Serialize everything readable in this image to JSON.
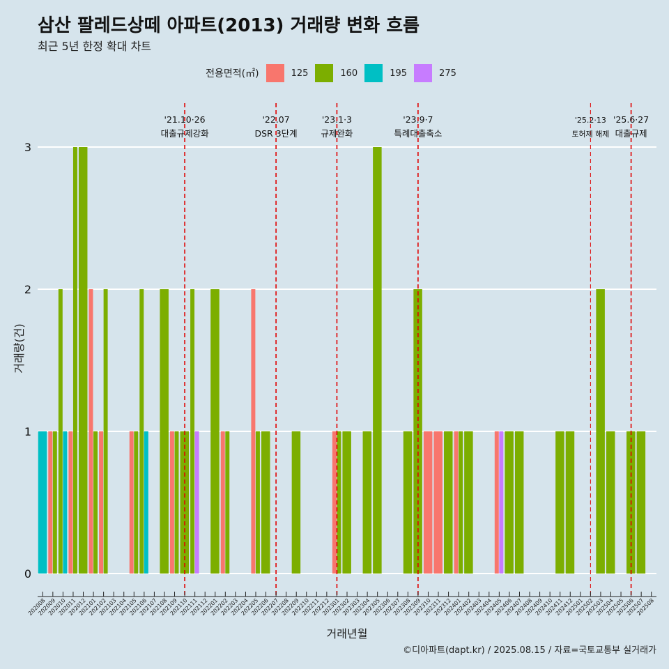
{
  "title": "삼산 팔레드상떼 아파트(2013) 거래량 변화 흐름",
  "subtitle": "최근 5년 한정 확대 차트",
  "footer": "©디아파트(dapt.kr) / 2025.08.15 / 자료=국토교통부 실거래가",
  "legend": {
    "title": "전용면적(㎡)",
    "items": [
      {
        "label": "125",
        "color": "#f8766d"
      },
      {
        "label": "160",
        "color": "#7cae00"
      },
      {
        "label": "195",
        "color": "#00bfc4"
      },
      {
        "label": "275",
        "color": "#c77cff"
      }
    ]
  },
  "chart_data": {
    "type": "bar",
    "xlabel": "거래년월",
    "ylabel": "거래량(건)",
    "ylim": [
      0,
      3
    ],
    "yticks": [
      0,
      1,
      2,
      3
    ],
    "grid": true,
    "legend_position": "top",
    "categories": [
      "202008",
      "202009",
      "202010",
      "202011",
      "202012",
      "202101",
      "202102",
      "202103",
      "202104",
      "202105",
      "202106",
      "202107",
      "202108",
      "202109",
      "202110",
      "202111",
      "202112",
      "202201",
      "202202",
      "202203",
      "202204",
      "202205",
      "202206",
      "202207",
      "202208",
      "202209",
      "202210",
      "202211",
      "202212",
      "202301",
      "202302",
      "202303",
      "202304",
      "202305",
      "202306",
      "202307",
      "202308",
      "202309",
      "202310",
      "202311",
      "202312",
      "202401",
      "202402",
      "202403",
      "202404",
      "202405",
      "202406",
      "202407",
      "202408",
      "202409",
      "202410",
      "202411",
      "202412",
      "202501",
      "202502",
      "202503",
      "202504",
      "202505",
      "202506",
      "202507",
      "202508"
    ],
    "series": [
      {
        "name": "125",
        "color": "#f8766d",
        "values": [
          0,
          1,
          0,
          1,
          0,
          2,
          1,
          0,
          0,
          1,
          0,
          0,
          0,
          1,
          0,
          0,
          0,
          0,
          1,
          0,
          0,
          2,
          0,
          0,
          0,
          0,
          0,
          0,
          0,
          1,
          0,
          0,
          0,
          0,
          0,
          0,
          0,
          0,
          1,
          1,
          0,
          1,
          0,
          0,
          0,
          1,
          0,
          0,
          0,
          0,
          0,
          0,
          0,
          0,
          0,
          0,
          0,
          0,
          0,
          0,
          0
        ]
      },
      {
        "name": "160",
        "color": "#7cae00",
        "values": [
          0,
          1,
          2,
          3,
          3,
          1,
          2,
          0,
          0,
          1,
          2,
          0,
          2,
          1,
          1,
          2,
          0,
          2,
          1,
          0,
          0,
          1,
          1,
          0,
          0,
          1,
          0,
          0,
          0,
          1,
          1,
          0,
          1,
          3,
          0,
          0,
          1,
          2,
          0,
          0,
          1,
          1,
          1,
          0,
          0,
          0,
          1,
          1,
          0,
          0,
          0,
          1,
          1,
          0,
          0,
          2,
          1,
          0,
          1,
          1,
          0
        ]
      },
      {
        "name": "195",
        "color": "#00bfc4",
        "values": [
          1,
          0,
          1,
          0,
          0,
          0,
          0,
          0,
          0,
          0,
          1,
          0,
          0,
          0,
          0,
          0,
          0,
          0,
          0,
          0,
          0,
          0,
          0,
          0,
          0,
          0,
          0,
          0,
          0,
          0,
          0,
          0,
          0,
          0,
          0,
          0,
          0,
          0,
          0,
          0,
          0,
          0,
          0,
          0,
          0,
          0,
          0,
          0,
          0,
          0,
          0,
          0,
          0,
          0,
          0,
          0,
          0,
          0,
          0,
          0,
          0
        ]
      },
      {
        "name": "275",
        "color": "#c77cff",
        "values": [
          0,
          0,
          0,
          0,
          0,
          0,
          0,
          0,
          0,
          0,
          0,
          0,
          0,
          0,
          0,
          1,
          0,
          0,
          0,
          0,
          0,
          0,
          0,
          0,
          0,
          0,
          0,
          0,
          0,
          0,
          0,
          0,
          0,
          0,
          0,
          0,
          0,
          0,
          0,
          0,
          0,
          0,
          0,
          0,
          0,
          1,
          0,
          0,
          0,
          0,
          0,
          0,
          0,
          0,
          0,
          0,
          0,
          0,
          0,
          0,
          0
        ]
      }
    ],
    "annotations": [
      {
        "x": "202110",
        "line1": "'21.10·26",
        "line2": "대출규제강화"
      },
      {
        "x": "202207",
        "line1": "'22.07",
        "line2": "DSR 3단계"
      },
      {
        "x": "202301",
        "line1": "'23.1·3",
        "line2": "규제완화"
      },
      {
        "x": "202309",
        "line1": "'23.9·7",
        "line2": "특례대출축소"
      },
      {
        "x": "202502",
        "line1": "'25.2·13",
        "line2": "토허제 해제"
      },
      {
        "x": "202506",
        "line1": "'25.6·27",
        "line2": "대출규제"
      }
    ]
  }
}
